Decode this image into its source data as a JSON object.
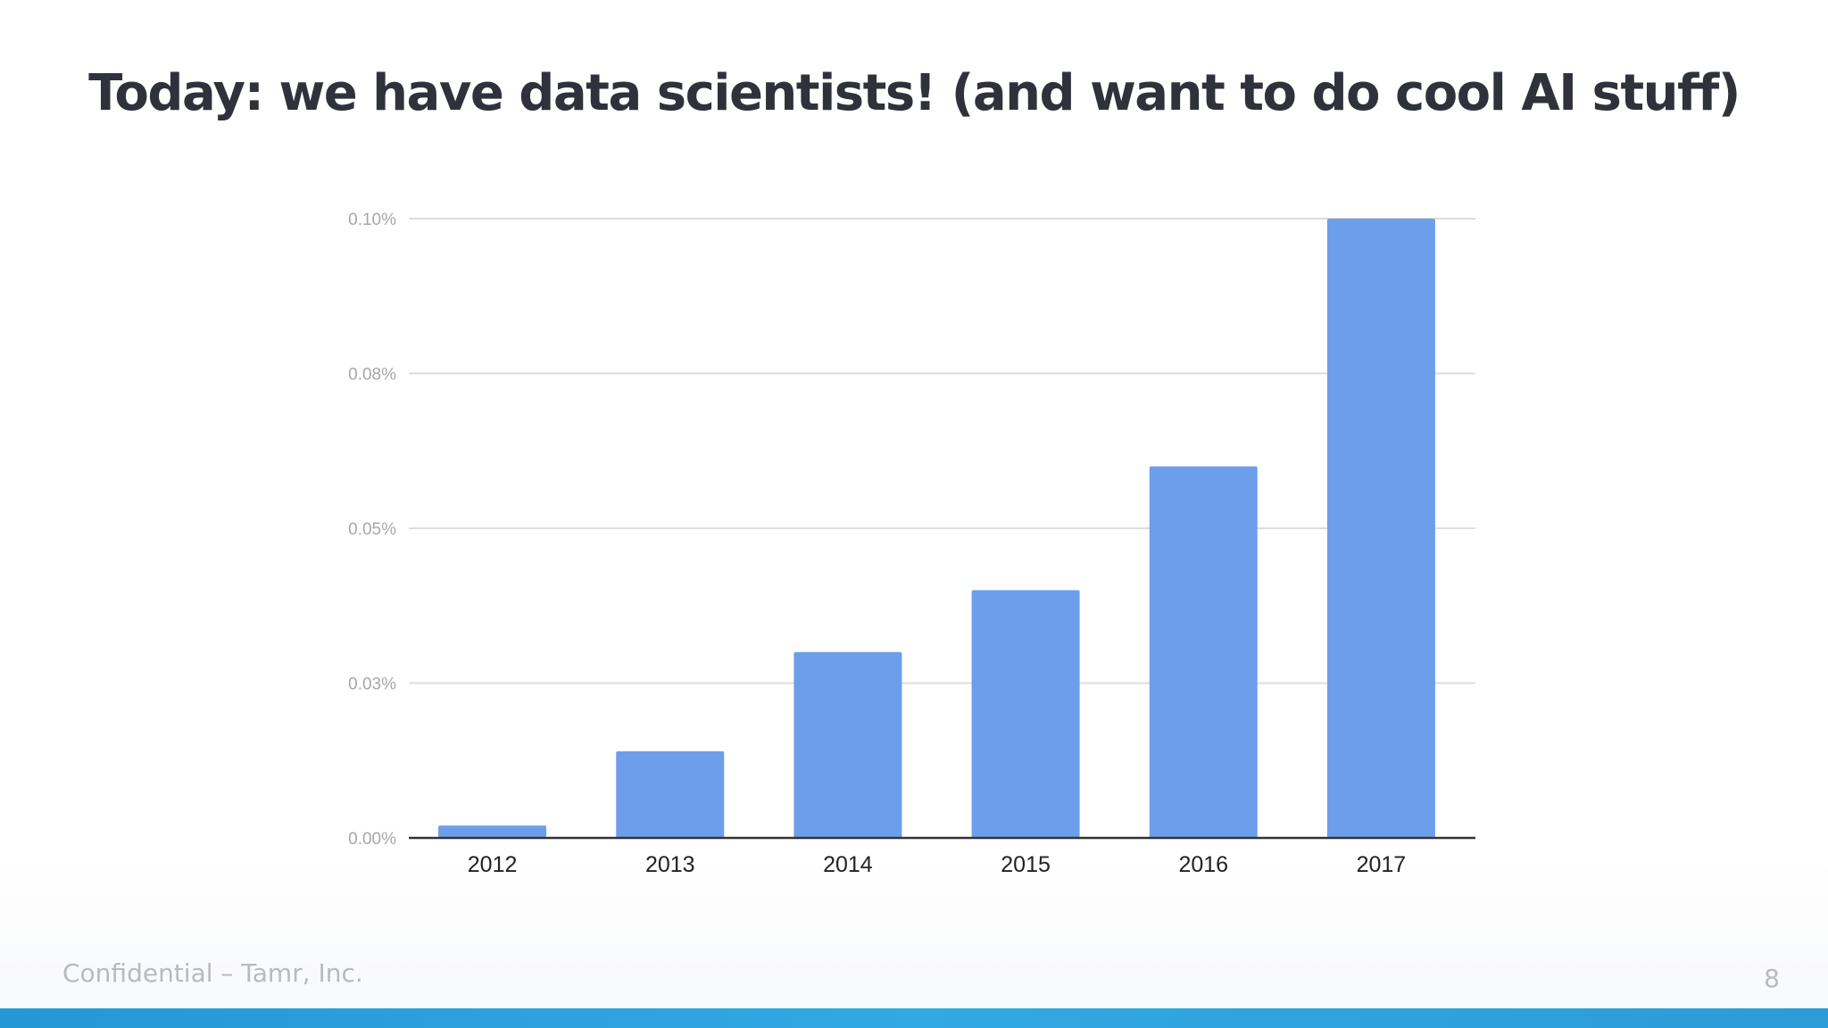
{
  "slide": {
    "title": "Today: we have data scientists! (and want to do cool AI stuff)",
    "footer": "Confidential – Tamr, Inc.",
    "page_number": "8",
    "accent_bar_color": "#2a9cd8"
  },
  "chart_data": {
    "type": "bar",
    "categories": [
      "2012",
      "2013",
      "2014",
      "2015",
      "2016",
      "2017"
    ],
    "values": [
      0.002,
      0.014,
      0.03,
      0.04,
      0.06,
      0.1
    ],
    "y_ticks": [
      {
        "value": 0.0,
        "label": "0.00%"
      },
      {
        "value": 0.025,
        "label": "0.03%"
      },
      {
        "value": 0.05,
        "label": "0.05%"
      },
      {
        "value": 0.075,
        "label": "0.08%"
      },
      {
        "value": 0.1,
        "label": "0.10%"
      }
    ],
    "ylim": [
      0,
      0.1
    ],
    "title": "",
    "xlabel": "",
    "ylabel": "",
    "grid": true,
    "legend": "none",
    "bar_color": "#6d9eeb",
    "grid_color": "#dcdcdc",
    "axis_color": "#333333"
  }
}
